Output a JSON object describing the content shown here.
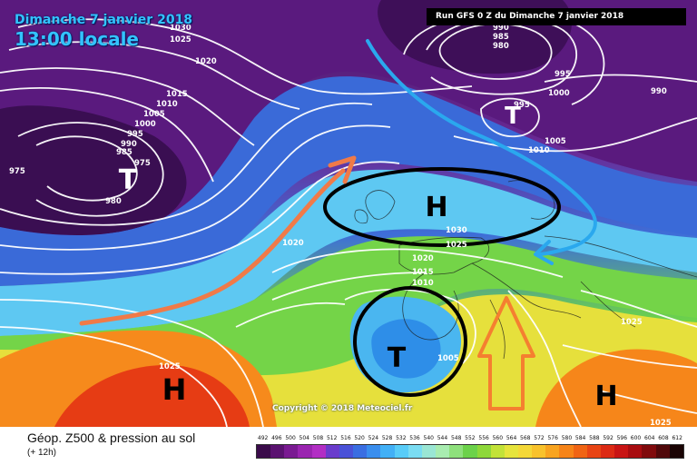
{
  "header": {
    "date_label": "Dimanche 7 janvier 2018",
    "time_label": "13:00 locale",
    "run_label": "Run GFS 0 Z du Dimanche 7 janvier 2018"
  },
  "map": {
    "pressure_labels": [
      "1030",
      "1025",
      "1020",
      "1015",
      "1010",
      "1005",
      "1000",
      "995",
      "990",
      "985",
      "975",
      "980",
      "990",
      "985",
      "980",
      "995",
      "1000",
      "990",
      "995",
      "1005",
      "1010",
      "975",
      "1020",
      "1030",
      "1025",
      "1020",
      "1015",
      "1010",
      "1025",
      "1005",
      "1025",
      "1025"
    ],
    "systems": [
      {
        "letter": "T",
        "kind": "low"
      },
      {
        "letter": "T",
        "kind": "low"
      },
      {
        "letter": "H",
        "kind": "high"
      },
      {
        "letter": "T",
        "kind": "low"
      },
      {
        "letter": "H",
        "kind": "high"
      },
      {
        "letter": "H",
        "kind": "high"
      }
    ],
    "copyright": "Copyright © 2018 Meteociel.fr"
  },
  "footer": {
    "title": "Géop. Z500 & pression au sol",
    "subtitle": "(+ 12h)"
  },
  "legend": {
    "labels": [
      "492",
      "496",
      "500",
      "504",
      "508",
      "512",
      "516",
      "520",
      "524",
      "528",
      "532",
      "536",
      "540",
      "544",
      "548",
      "552",
      "556",
      "560",
      "564",
      "568",
      "572",
      "576",
      "580",
      "584",
      "588",
      "592",
      "596",
      "600",
      "604",
      "608",
      "612"
    ],
    "colors": [
      "#3a0b4a",
      "#5a1270",
      "#7a1a92",
      "#9a24b0",
      "#b22ec4",
      "#6a3ccc",
      "#4a52d8",
      "#3a6ee2",
      "#3a8eee",
      "#42b0f6",
      "#58ccf8",
      "#7adcf2",
      "#9ae6d4",
      "#a8ecb0",
      "#8ee07c",
      "#6cd24a",
      "#8ed83a",
      "#c2e238",
      "#e6e43c",
      "#f4d838",
      "#f8c22c",
      "#f8a420",
      "#f68418",
      "#f06414",
      "#e84414",
      "#dc2a14",
      "#c81414",
      "#a80c10",
      "#800a0c",
      "#50080a",
      "#1a0404"
    ]
  }
}
